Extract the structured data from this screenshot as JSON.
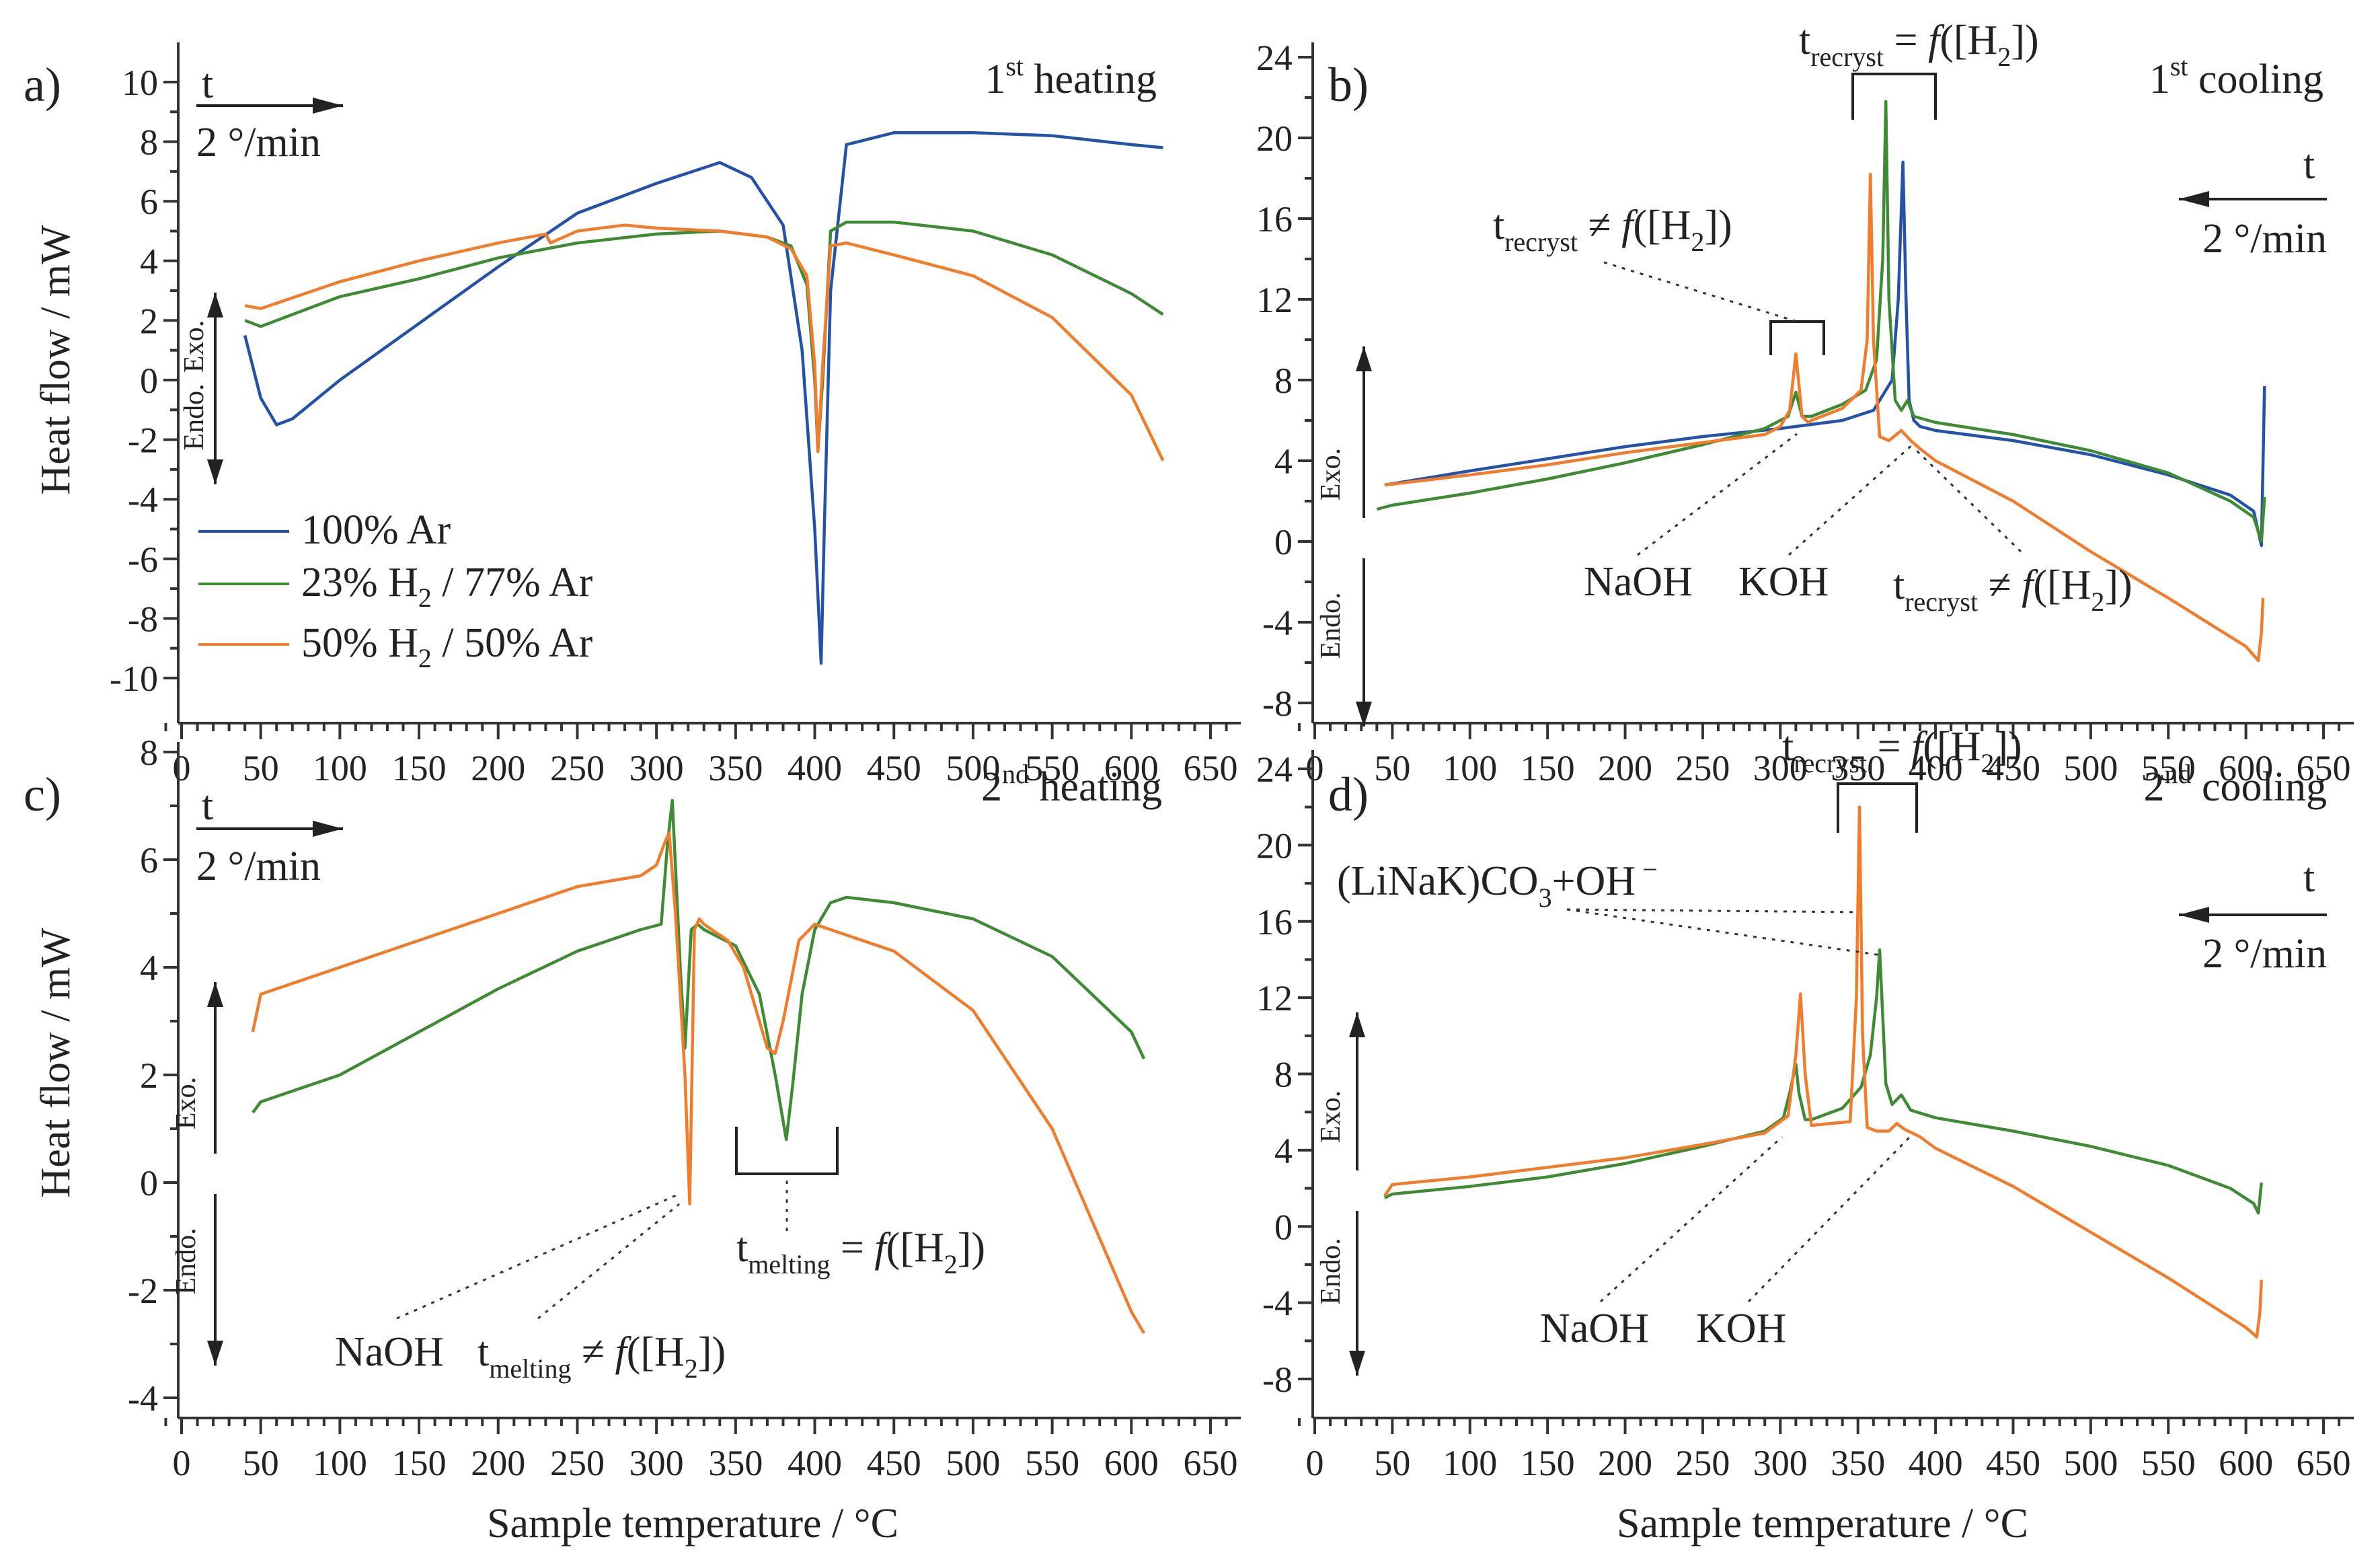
{
  "figure": {
    "xlabel_left": "Sample temperature / °C",
    "xlabel_right": "Sample temperature / °C",
    "ylabel_top": "Heat flow / mW",
    "ylabel_bottom": "Heat flow / mW",
    "exo": "Exo.",
    "endo": "Endo.",
    "legend": {
      "ar": "100% Ar",
      "h23_a": "23% H",
      "h23_sub": "2",
      "h23_b": " / 77% Ar",
      "h50_a": "50% H",
      "h50_sub": "2",
      "h50_b": " / 50% Ar"
    },
    "rate_t": "t",
    "rate": "2 °/min"
  },
  "colors": {
    "ar": "#2452a8",
    "h23": "#3f8a34",
    "h50": "#f07c2c"
  },
  "chart_data": [
    {
      "panel": "a",
      "panel_label": "a)",
      "type": "line",
      "title_a": "1",
      "title_sup": "st",
      "title_b": " heating",
      "xlim": [
        -10,
        660
      ],
      "xticks": [
        "0",
        "50",
        "100",
        "150",
        "200",
        "250",
        "300",
        "350",
        "400",
        "450",
        "500",
        "550",
        "600",
        "650"
      ],
      "ylim": [
        -11,
        11
      ],
      "yticks": [
        "-10",
        "-8",
        "-6",
        "-4",
        "-2",
        "0",
        "2",
        "4",
        "6",
        "8",
        "10"
      ],
      "series": [
        {
          "name": "100% Ar",
          "color_key": "ar",
          "x": [
            40,
            50,
            60,
            70,
            100,
            150,
            200,
            250,
            300,
            340,
            360,
            380,
            392,
            400,
            404,
            406,
            410,
            420,
            450,
            500,
            550,
            600,
            620
          ],
          "y": [
            1.5,
            -0.6,
            -1.5,
            -1.3,
            0.0,
            1.9,
            3.8,
            5.6,
            6.6,
            7.3,
            6.8,
            5.2,
            1.0,
            -5.0,
            -9.5,
            -5.0,
            3.0,
            7.9,
            8.3,
            8.3,
            8.2,
            7.9,
            7.8
          ]
        },
        {
          "name": "23% H2 / 77% Ar",
          "color_key": "h23",
          "x": [
            40,
            50,
            100,
            150,
            200,
            250,
            300,
            340,
            370,
            385,
            395,
            400,
            402,
            405,
            410,
            420,
            450,
            500,
            550,
            600,
            620
          ],
          "y": [
            2.0,
            1.8,
            2.8,
            3.4,
            4.1,
            4.6,
            4.9,
            5.0,
            4.8,
            4.5,
            3.2,
            0.0,
            -2.4,
            0.0,
            5.0,
            5.3,
            5.3,
            5.0,
            4.2,
            2.9,
            2.2
          ]
        },
        {
          "name": "50% H2 / 50% Ar",
          "color_key": "h50",
          "x": [
            40,
            50,
            100,
            150,
            200,
            230,
            233,
            250,
            280,
            300,
            340,
            370,
            385,
            395,
            400,
            402,
            405,
            410,
            420,
            450,
            500,
            550,
            600,
            620
          ],
          "y": [
            2.5,
            2.4,
            3.3,
            4.0,
            4.6,
            4.9,
            4.6,
            5.0,
            5.2,
            5.1,
            5.0,
            4.8,
            4.4,
            3.5,
            0.5,
            -2.4,
            0.5,
            4.5,
            4.6,
            4.2,
            3.5,
            2.1,
            -0.5,
            -2.7
          ]
        }
      ],
      "annotations": []
    },
    {
      "panel": "b",
      "panel_label": "b)",
      "type": "line",
      "title_a": "1",
      "title_sup": "st",
      "title_b": " cooling",
      "xlim": [
        -10,
        660
      ],
      "xticks": [
        "0",
        "50",
        "100",
        "150",
        "200",
        "250",
        "300",
        "350",
        "400",
        "450",
        "500",
        "550",
        "600",
        "650"
      ],
      "ylim": [
        -8,
        24
      ],
      "yticks": [
        "-8",
        "-4",
        "0",
        "4",
        "8",
        "12",
        "16",
        "20",
        "24"
      ],
      "series": [
        {
          "name": "100% Ar",
          "color_key": "ar",
          "x": [
            45,
            100,
            150,
            200,
            250,
            300,
            340,
            360,
            372,
            376,
            379,
            381,
            383,
            386,
            390,
            400,
            450,
            500,
            550,
            590,
            605,
            610,
            612
          ],
          "y": [
            2.8,
            3.5,
            4.1,
            4.7,
            5.2,
            5.6,
            6.0,
            6.5,
            8.0,
            12.0,
            18.8,
            12.0,
            7.0,
            6.0,
            5.7,
            5.5,
            5.0,
            4.3,
            3.3,
            2.3,
            1.5,
            -0.2,
            7.7
          ]
        },
        {
          "name": "23% H2 / 77% Ar",
          "color_key": "h23",
          "x": [
            40,
            50,
            100,
            150,
            200,
            250,
            290,
            305,
            310,
            314,
            320,
            340,
            355,
            362,
            366,
            368,
            370,
            374,
            378,
            382,
            386,
            400,
            450,
            500,
            550,
            590,
            605,
            610,
            612
          ],
          "y": [
            1.6,
            1.8,
            2.4,
            3.1,
            3.9,
            4.8,
            5.6,
            6.2,
            7.4,
            6.2,
            6.2,
            6.8,
            7.5,
            9.0,
            14.0,
            21.8,
            12.0,
            7.0,
            6.5,
            7.0,
            6.2,
            5.9,
            5.3,
            4.5,
            3.4,
            2.0,
            1.2,
            0.0,
            2.2
          ]
        },
        {
          "name": "50% H2 / 50% Ar",
          "color_key": "h50",
          "x": [
            45,
            100,
            150,
            200,
            250,
            290,
            300,
            306,
            310,
            314,
            318,
            320,
            340,
            352,
            356,
            358,
            360,
            364,
            370,
            378,
            384,
            390,
            400,
            450,
            500,
            550,
            600,
            608,
            610,
            611
          ],
          "y": [
            2.8,
            3.3,
            3.8,
            4.4,
            4.9,
            5.3,
            5.7,
            6.5,
            9.3,
            6.2,
            5.9,
            6.0,
            6.6,
            7.5,
            10.0,
            18.2,
            10.0,
            5.2,
            5.0,
            5.5,
            5.0,
            4.6,
            4.0,
            2.0,
            -0.5,
            -2.8,
            -5.2,
            -5.9,
            -4.5,
            -2.8
          ]
        }
      ],
      "annotations": [
        {
          "a": "t",
          "sub": "recryst",
          "b": " = ",
          "fn": "f",
          "c": "([H",
          "sub2": "2",
          "d": "])",
          "kind": "eq"
        },
        {
          "a": "t",
          "sub": "recryst",
          "b": " ≠ ",
          "fn": "f",
          "c": "([H",
          "sub2": "2",
          "d": "])",
          "kind": "neq"
        },
        {
          "text": "NaOH"
        },
        {
          "text": "KOH"
        },
        {
          "a": "t",
          "sub": "recryst",
          "b": " ≠ ",
          "fn": "f",
          "c": "([H",
          "sub2": "2",
          "d": "])",
          "kind": "neq2"
        }
      ]
    },
    {
      "panel": "c",
      "panel_label": "c)",
      "type": "line",
      "title_a": "2",
      "title_sup": "nd",
      "title_b": " heating",
      "xlim": [
        -10,
        660
      ],
      "xticks": [
        "0",
        "50",
        "100",
        "150",
        "200",
        "250",
        "300",
        "350",
        "400",
        "450",
        "500",
        "550",
        "600",
        "650"
      ],
      "ylim": [
        -4,
        8
      ],
      "yticks": [
        "-4",
        "-2",
        "0",
        "2",
        "4",
        "6",
        "8"
      ],
      "series": [
        {
          "name": "23% H2 / 77% Ar",
          "color_key": "h23",
          "x": [
            45,
            50,
            100,
            150,
            200,
            250,
            290,
            303,
            307,
            310,
            315,
            318,
            322,
            326,
            330,
            350,
            365,
            375,
            382,
            386,
            392,
            400,
            410,
            420,
            450,
            500,
            550,
            600,
            608
          ],
          "y": [
            1.3,
            1.5,
            2.0,
            2.8,
            3.6,
            4.3,
            4.7,
            4.8,
            6.3,
            7.1,
            4.0,
            2.5,
            4.7,
            4.8,
            4.7,
            4.4,
            3.5,
            2.0,
            0.8,
            1.8,
            3.5,
            4.7,
            5.2,
            5.3,
            5.2,
            4.9,
            4.2,
            2.8,
            2.3
          ]
        },
        {
          "name": "50% H2 / 50% Ar",
          "color_key": "h50",
          "x": [
            45,
            50,
            60,
            100,
            150,
            200,
            250,
            290,
            300,
            305,
            308,
            312,
            318,
            321,
            324,
            327,
            330,
            345,
            355,
            365,
            370,
            375,
            380,
            390,
            400,
            410,
            450,
            500,
            550,
            600,
            608
          ],
          "y": [
            2.8,
            3.5,
            3.6,
            4.0,
            4.5,
            5.0,
            5.5,
            5.7,
            5.9,
            6.3,
            6.5,
            5.0,
            2.0,
            -0.4,
            4.7,
            4.9,
            4.8,
            4.5,
            4.0,
            3.0,
            2.5,
            2.4,
            3.0,
            4.5,
            4.8,
            4.7,
            4.3,
            3.2,
            1.0,
            -2.4,
            -2.8
          ]
        }
      ],
      "annotations": [
        {
          "text": "NaOH"
        },
        {
          "a": "t",
          "sub": "melting",
          "b": " ≠ ",
          "fn": "f",
          "c": "([H",
          "sub2": "2",
          "d": "])",
          "kind": "neq"
        },
        {
          "a": "t",
          "sub": "melting",
          "b": " = ",
          "fn": "f",
          "c": "([H",
          "sub2": "2",
          "d": "])",
          "kind": "eq"
        }
      ]
    },
    {
      "panel": "d",
      "panel_label": "d)",
      "type": "line",
      "title_a": "2",
      "title_sup": "nd",
      "title_b": " cooling",
      "xlim": [
        -10,
        660
      ],
      "xticks": [
        "0",
        "50",
        "100",
        "150",
        "200",
        "250",
        "300",
        "350",
        "400",
        "450",
        "500",
        "550",
        "600",
        "650"
      ],
      "ylim": [
        -8,
        24
      ],
      "yticks": [
        "-8",
        "-4",
        "0",
        "4",
        "8",
        "12",
        "16",
        "20",
        "24"
      ],
      "series": [
        {
          "name": "23% H2 / 77% Ar",
          "color_key": "h23",
          "x": [
            45,
            50,
            100,
            150,
            200,
            250,
            290,
            302,
            306,
            310,
            312,
            316,
            320,
            340,
            352,
            358,
            362,
            364,
            366,
            368,
            372,
            378,
            384,
            400,
            450,
            500,
            550,
            590,
            605,
            608,
            610
          ],
          "y": [
            1.5,
            1.7,
            2.1,
            2.6,
            3.3,
            4.2,
            5.0,
            5.7,
            7.0,
            8.5,
            7.0,
            5.6,
            5.6,
            6.2,
            7.3,
            9.0,
            12.0,
            14.5,
            11.0,
            7.5,
            6.4,
            6.9,
            6.1,
            5.7,
            5.0,
            4.2,
            3.2,
            2.0,
            1.2,
            0.7,
            2.3
          ]
        },
        {
          "name": "50% H2 / 50% Ar",
          "color_key": "h50",
          "x": [
            45,
            50,
            100,
            150,
            200,
            250,
            290,
            305,
            310,
            313,
            316,
            320,
            345,
            349,
            351,
            353,
            356,
            362,
            370,
            375,
            380,
            390,
            400,
            450,
            500,
            550,
            600,
            607,
            609,
            610
          ],
          "y": [
            1.6,
            2.2,
            2.6,
            3.1,
            3.6,
            4.3,
            4.9,
            5.8,
            9.0,
            12.2,
            8.0,
            5.3,
            5.5,
            12.0,
            22.0,
            10.0,
            5.2,
            5.0,
            5.0,
            5.4,
            5.1,
            4.7,
            4.1,
            2.1,
            -0.3,
            -2.7,
            -5.3,
            -5.8,
            -4.5,
            -2.8
          ]
        }
      ],
      "annotations": [
        {
          "a": "t",
          "sub": "recryst",
          "b": " = ",
          "fn": "f",
          "c": "([H",
          "sub2": "2",
          "d": "])",
          "kind": "eq"
        },
        {
          "a": "(LiNaK)CO",
          "sub": "3",
          "b": "+OH",
          "sup": " −",
          "kind": "carb"
        },
        {
          "text": "NaOH"
        },
        {
          "text": "KOH"
        }
      ]
    }
  ]
}
